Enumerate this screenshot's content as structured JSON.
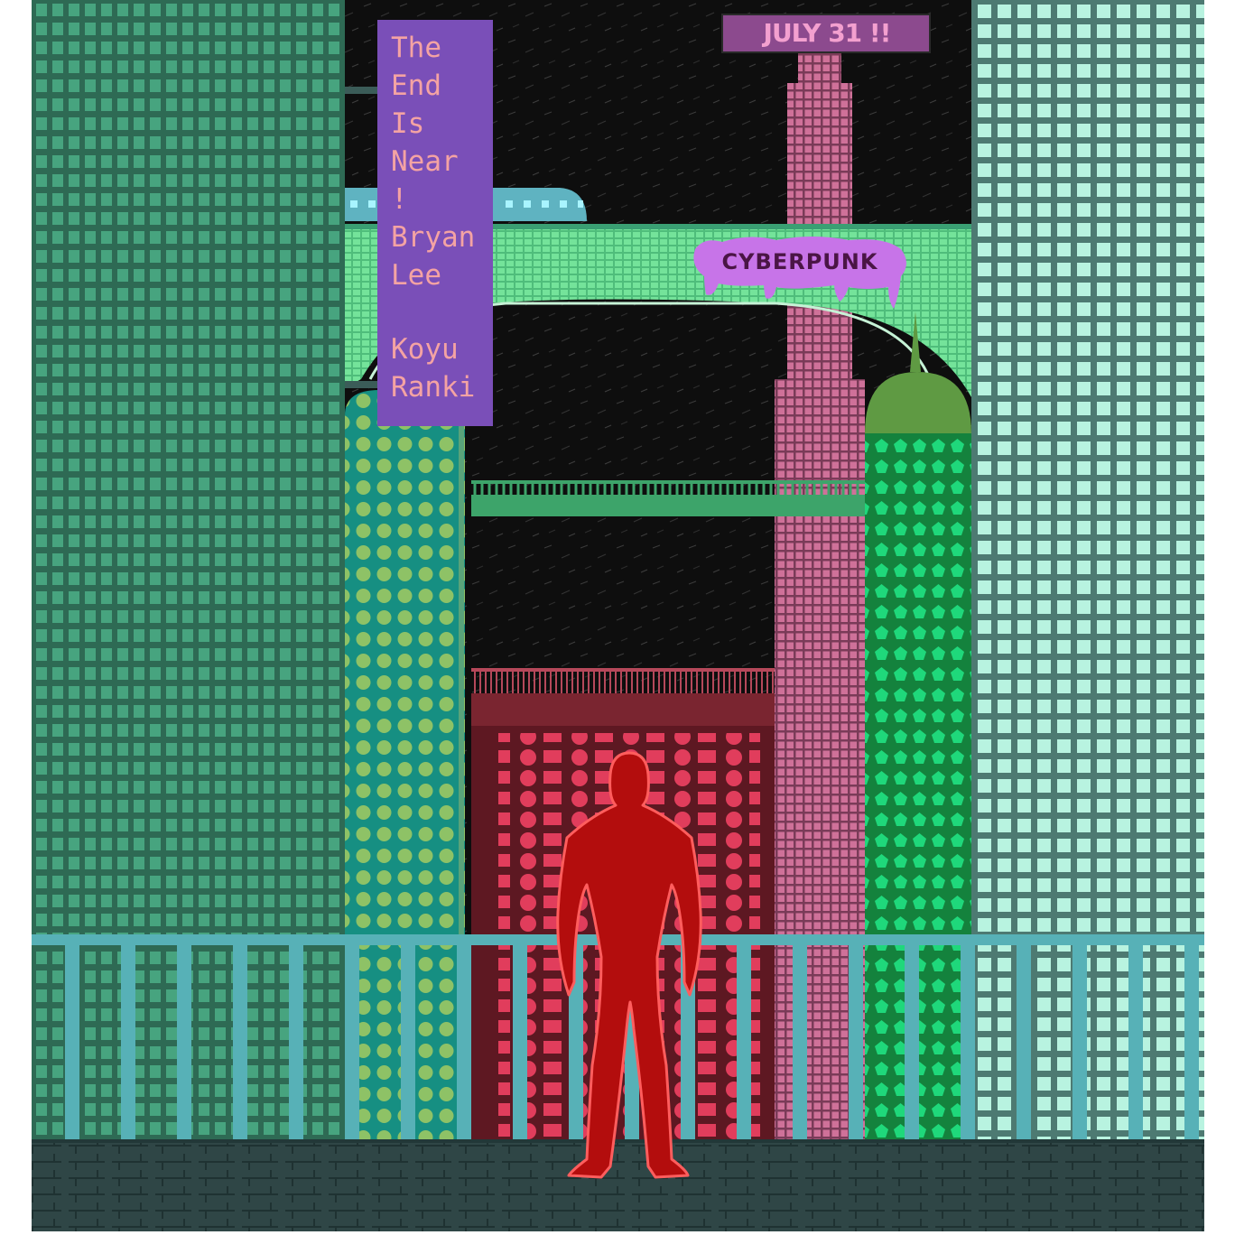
{
  "poster": {
    "title_lines": [
      "The",
      "End",
      "Is",
      "Near",
      "!",
      "Bryan",
      "Lee",
      "",
      "Koyu",
      "Ranki"
    ],
    "date_sign": "JULY 31 !!",
    "graffiti_sign": "CYBERPUNK"
  },
  "colors": {
    "sky": "#111111",
    "left_tower": "#3c8a6c",
    "right_tower": "#b2f1dc",
    "teal_tower": "#159082",
    "spire": "#c46b93",
    "red_block": "#5e1c24",
    "green_tower": "#11a14d",
    "skybridge": "#67d58f",
    "banner": "#7a4fb8",
    "railing": "#57b1b7",
    "floor": "#2b4444",
    "figure": "#b30d0d"
  },
  "icons": [
    "standing-figure-icon",
    "graffiti-drip-icon"
  ]
}
